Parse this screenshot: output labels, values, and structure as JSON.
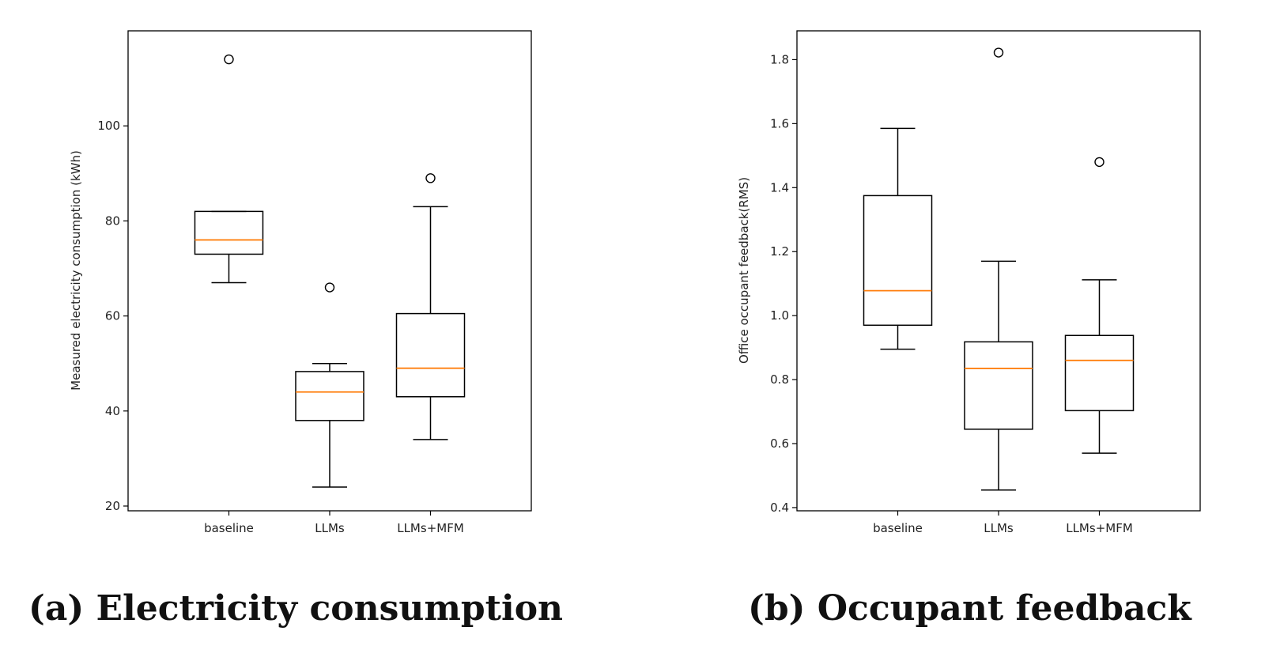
{
  "chart_data": [
    {
      "type": "boxplot",
      "caption": "(a) Electricity consumption",
      "xlabel": "",
      "ylabel": "Measured electricity consumption (kWh)",
      "categories": [
        "baseline",
        "LLMs",
        "LLMs+MFM"
      ],
      "ylim": [
        19,
        120
      ],
      "yticks": [
        20,
        40,
        60,
        80,
        100
      ],
      "boxes": [
        {
          "category": "baseline",
          "whisker_low": 67,
          "q1": 73,
          "median": 76,
          "q3": 82,
          "whisker_high": 82,
          "outliers": [
            114
          ]
        },
        {
          "category": "LLMs",
          "whisker_low": 24,
          "q1": 38,
          "median": 44,
          "q3": 48.3,
          "whisker_high": 50,
          "outliers": [
            66
          ]
        },
        {
          "category": "LLMs+MFM",
          "whisker_low": 34,
          "q1": 43,
          "median": 49,
          "q3": 60.5,
          "whisker_high": 83,
          "outliers": [
            89
          ]
        }
      ],
      "median_color": "#ff7f0e",
      "box_color": "#000000",
      "grid": false
    },
    {
      "type": "boxplot",
      "caption": "(b) Occupant feedback",
      "xlabel": "",
      "ylabel": "Office occupant feedback(RMS)",
      "categories": [
        "baseline",
        "LLMs",
        "LLMs+MFM"
      ],
      "ylim": [
        0.39,
        1.89
      ],
      "yticks": [
        0.4,
        0.6,
        0.8,
        1.0,
        1.2,
        1.4,
        1.6,
        1.8
      ],
      "yticklabels": [
        "0.4",
        "0.6",
        "0.8",
        "1.0",
        "1.2",
        "1.4",
        "1.6",
        "1.8"
      ],
      "boxes": [
        {
          "category": "baseline",
          "whisker_low": 0.895,
          "q1": 0.97,
          "median": 1.078,
          "q3": 1.375,
          "whisker_high": 1.585,
          "outliers": []
        },
        {
          "category": "LLMs",
          "whisker_low": 0.455,
          "q1": 0.645,
          "median": 0.835,
          "q3": 0.918,
          "whisker_high": 1.17,
          "outliers": [
            1.822
          ]
        },
        {
          "category": "LLMs+MFM",
          "whisker_low": 0.57,
          "q1": 0.703,
          "median": 0.86,
          "q3": 0.938,
          "whisker_high": 1.112,
          "outliers": [
            1.48
          ]
        }
      ],
      "median_color": "#ff7f0e",
      "box_color": "#000000",
      "grid": false
    }
  ]
}
